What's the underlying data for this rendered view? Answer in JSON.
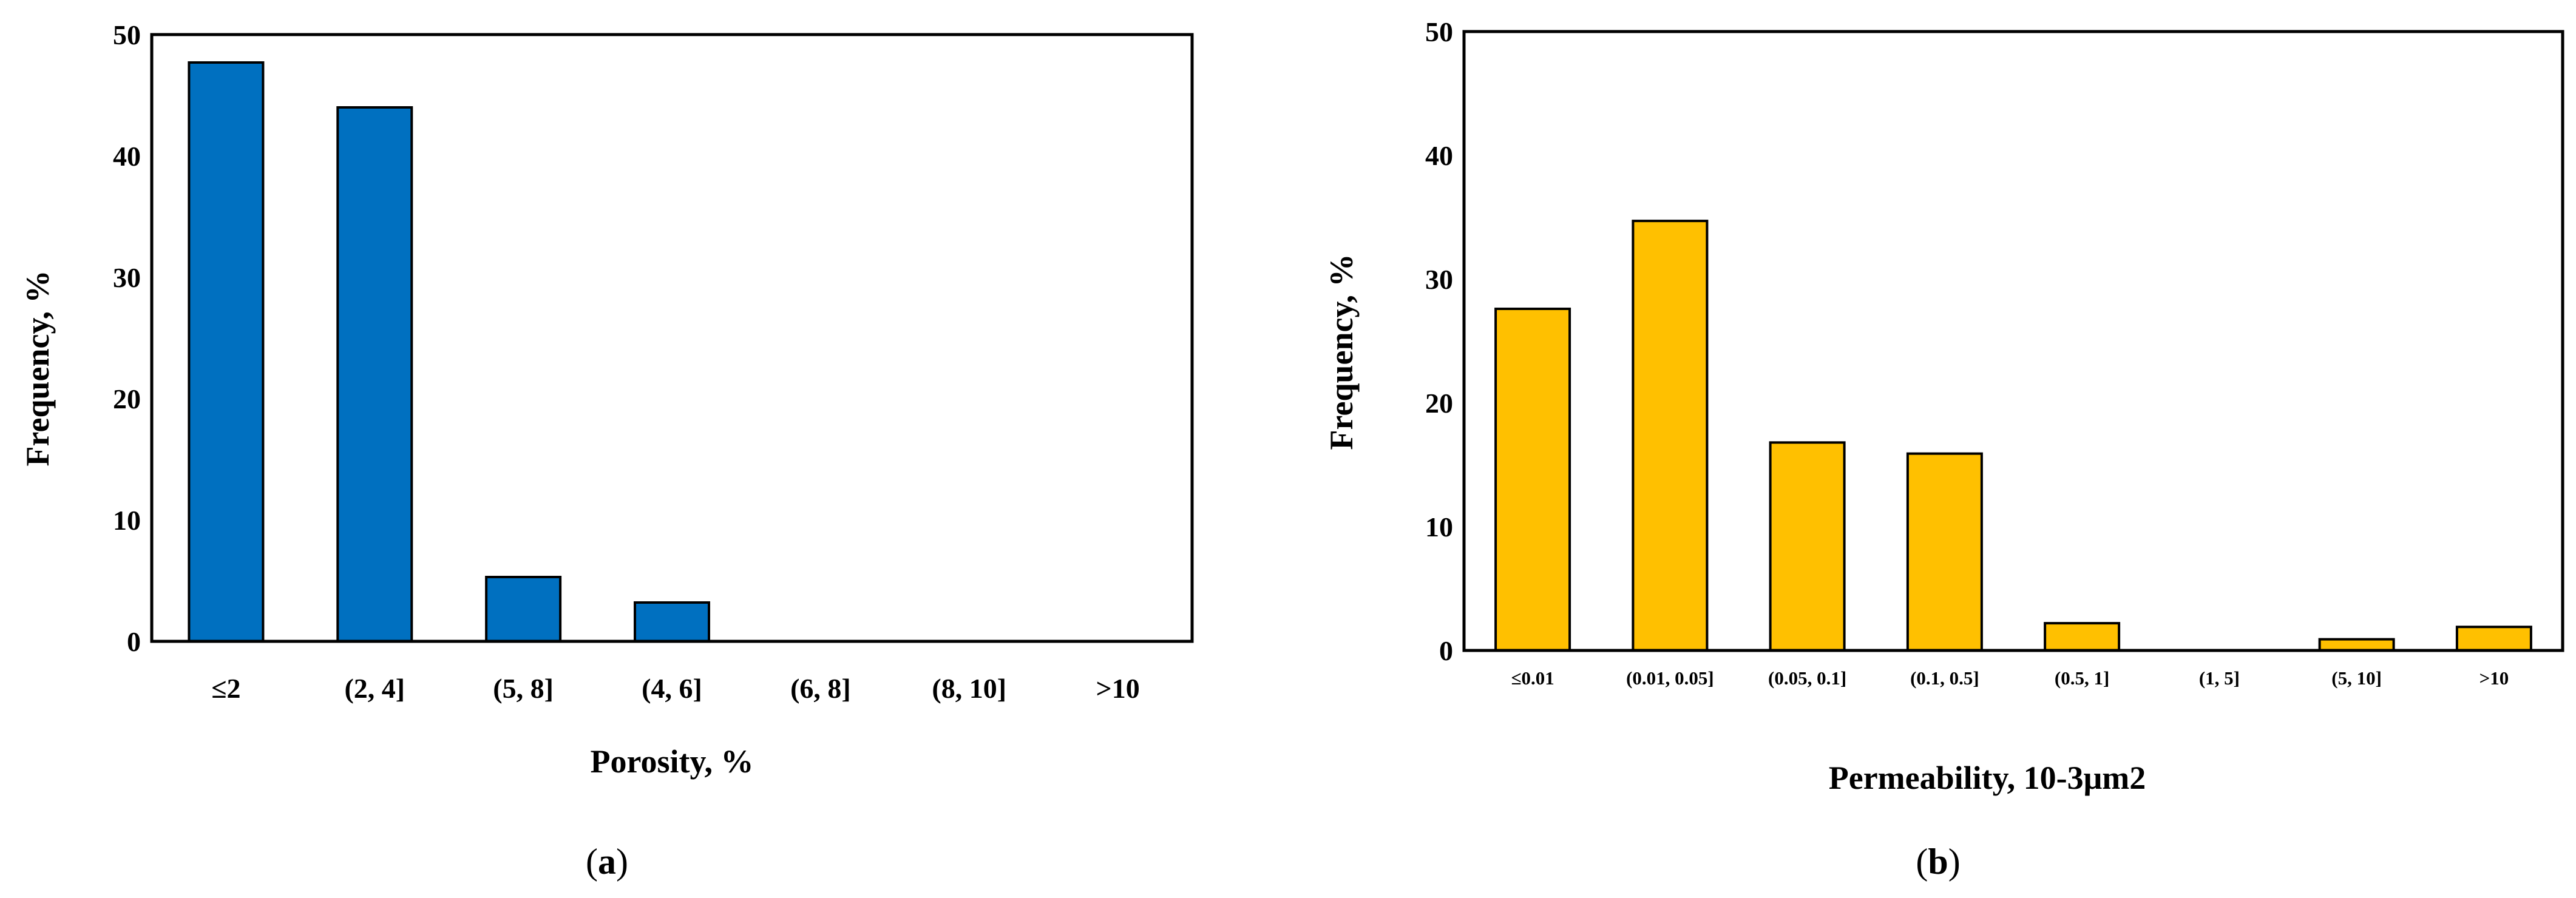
{
  "chart_data": [
    {
      "type": "bar",
      "panel_label": {
        "open": "(",
        "letter": "a",
        "close": ")"
      },
      "categories": [
        "≤2",
        "(2, 4]",
        "(5, 8]",
        "(4, 6]",
        "(6, 8]",
        "(8, 10]",
        ">10"
      ],
      "values": [
        47.7,
        44.0,
        5.3,
        3.2,
        0,
        0,
        0
      ],
      "xlabel": "Porosity,   %",
      "ylabel": "Frequency,   %",
      "ylim": [
        0,
        50
      ],
      "yticks": [
        "0",
        "10",
        "20",
        "30",
        "40",
        "50"
      ],
      "grid": false,
      "bar_color": "#0070C0"
    },
    {
      "type": "bar",
      "panel_label": {
        "open": "(",
        "letter": "b",
        "close": ")"
      },
      "categories": [
        "≤0.01",
        "(0.01, 0.05]",
        "(0.05, 0.1]",
        "(0.1, 0.5]",
        "(0.5, 1]",
        "(1, 5]",
        "(5, 10]",
        ">10"
      ],
      "values": [
        27.6,
        34.7,
        16.8,
        15.9,
        2.2,
        0,
        0.9,
        1.9
      ],
      "xlabel": "Permeability,   10-3μm2",
      "ylabel": "Frequency,   %",
      "ylim": [
        0,
        50
      ],
      "yticks": [
        "0",
        "10",
        "20",
        "30",
        "40",
        "50"
      ],
      "grid": false,
      "bar_color": "#FFC000"
    }
  ]
}
